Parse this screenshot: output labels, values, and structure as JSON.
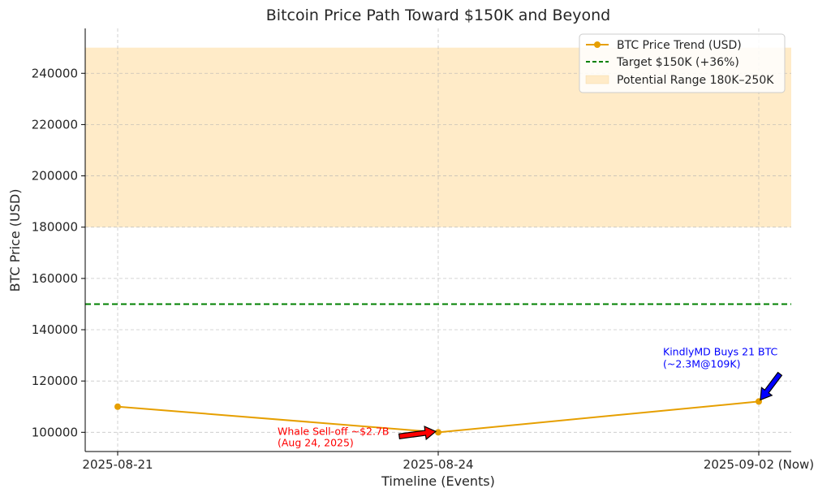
{
  "chart_data": {
    "type": "line",
    "title": "Bitcoin Price Path Toward $150K and Beyond",
    "xlabel": "Timeline (Events)",
    "ylabel": "BTC Price (USD)",
    "categories": [
      "2025-08-21",
      "2025-08-24",
      "2025-09-02 (Now)"
    ],
    "series": [
      {
        "name": "BTC Price Trend (USD)",
        "values": [
          110000,
          100000,
          112000
        ],
        "color": "#e69f00",
        "marker": "circle"
      }
    ],
    "reference_lines": [
      {
        "name": "Target $150K (+36%)",
        "y": 150000,
        "color": "#008000",
        "style": "dashed"
      }
    ],
    "bands": [
      {
        "name": "Potential Range 180K–250K",
        "y_from": 180000,
        "y_to": 250000,
        "color": "#ffebc8"
      }
    ],
    "annotations": [
      {
        "lines": [
          "Whale Sell-off ~$2.7B",
          "(Aug 24, 2025)"
        ],
        "target_category": "2025-08-24",
        "target_value": 100000,
        "color": "#ff0000",
        "arrow_color": "#ff0000"
      },
      {
        "lines": [
          "KindlyMD Buys 21 BTC",
          "(~2.3M@109K)"
        ],
        "target_category": "2025-09-02 (Now)",
        "target_value": 112000,
        "color": "#0000ff",
        "arrow_color": "#0000ff"
      }
    ],
    "yticks": [
      100000,
      120000,
      140000,
      160000,
      180000,
      200000,
      220000,
      240000
    ],
    "ylim": [
      92500,
      257500
    ],
    "grid": true,
    "legend_position": "top-right"
  }
}
